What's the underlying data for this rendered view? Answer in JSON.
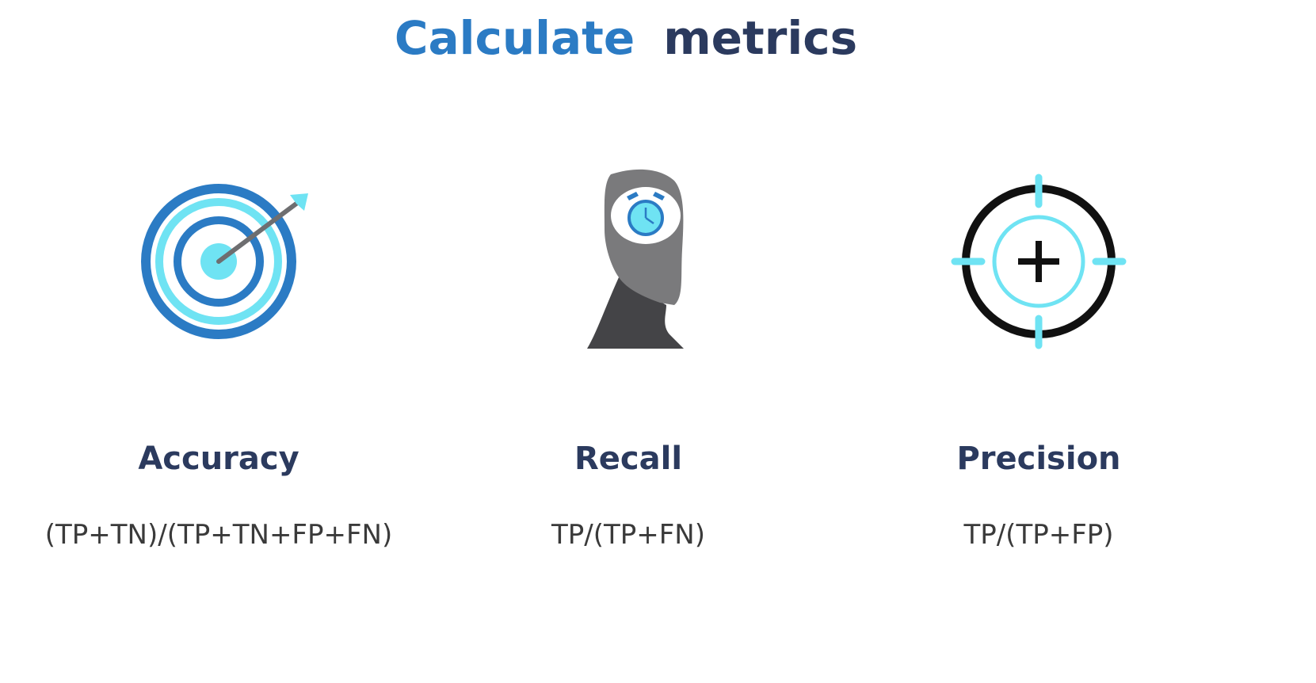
{
  "title": {
    "word_1": "Calculate",
    "word_2": "metrics",
    "word_1_color": "#2b7bc4",
    "word_2_color": "#2b3a5e"
  },
  "metrics": [
    {
      "name": "Accuracy",
      "formula": "(TP+TN)/(TP+TN+FP+FN)",
      "icon": "target-arrow-icon"
    },
    {
      "name": "Recall",
      "formula": "TP/(TP+FN)",
      "icon": "head-alarm-clock-icon"
    },
    {
      "name": "Precision",
      "formula": "TP/(TP+FP)",
      "icon": "crosshair-plus-icon"
    }
  ],
  "colors": {
    "dark_blue": "#2b7bc4",
    "light_cyan": "#6fe3f3",
    "gray": "#7a7a7c",
    "dark_gray": "#444447",
    "black": "#111111"
  }
}
